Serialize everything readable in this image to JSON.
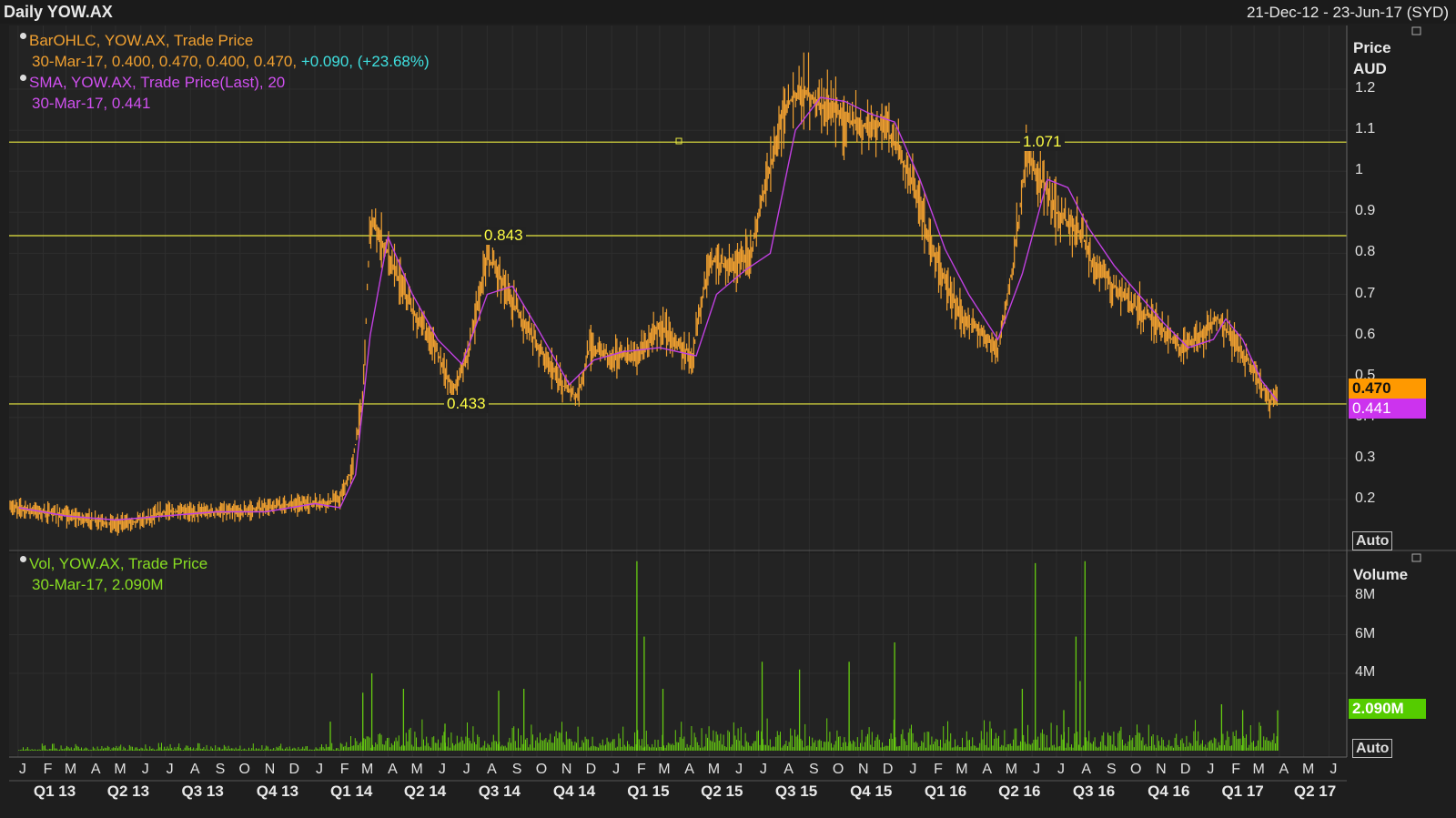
{
  "header": {
    "title": "Daily YOW.AX",
    "range": "21-Dec-12 - 23-Jun-17 (SYD)"
  },
  "price_legend": {
    "ohlc_title": "BarOHLC, YOW.AX, Trade Price",
    "ohlc_values": "30-Mar-17, 0.400, 0.470, 0.400, 0.470,",
    "ohlc_change": "+0.090, (+23.68%)",
    "sma_title": "SMA, YOW.AX, Trade Price(Last),  20",
    "sma_values": "30-Mar-17, 0.441"
  },
  "volume_legend": {
    "title": "Vol, YOW.AX, Trade Price",
    "values": "30-Mar-17, 2.090M"
  },
  "price_axis": {
    "title_1": "Price",
    "title_2": "AUD",
    "ticks": [
      "1.2",
      "1.1",
      "1",
      "0.9",
      "0.8",
      "0.7",
      "0.6",
      "0.5",
      "0.4",
      "0.3",
      "0.2"
    ],
    "auto_label": "Auto",
    "last_price_tag": "0.470",
    "sma_tag": "0.441"
  },
  "volume_axis": {
    "title": "Volume",
    "ticks": [
      "8M",
      "6M",
      "4M"
    ],
    "auto_label": "Auto",
    "last_volume_tag": "2.090M"
  },
  "hlines": [
    "1.071",
    "0.843",
    "0.433"
  ],
  "month_labels": [
    "J",
    "F",
    "M",
    "A",
    "M",
    "J",
    "J",
    "A",
    "S",
    "O",
    "N",
    "D",
    "J",
    "F",
    "M",
    "A",
    "M",
    "J",
    "J",
    "A",
    "S",
    "O",
    "N",
    "D",
    "J",
    "F",
    "M",
    "A",
    "M",
    "J",
    "J",
    "A",
    "S",
    "O",
    "N",
    "D",
    "J",
    "F",
    "M",
    "A",
    "M",
    "J",
    "J",
    "A",
    "S",
    "O",
    "N",
    "D",
    "J",
    "F",
    "M",
    "A",
    "M",
    "J"
  ],
  "quarter_labels": [
    "Q1 13",
    "Q2 13",
    "Q3 13",
    "Q4 13",
    "Q1 14",
    "Q2 14",
    "Q3 14",
    "Q4 14",
    "Q1 15",
    "Q2 15",
    "Q3 15",
    "Q4 15",
    "Q1 16",
    "Q2 16",
    "Q3 16",
    "Q4 16",
    "Q1 17",
    "Q2 17"
  ],
  "colors": {
    "ohlc": "#f0a030",
    "sma": "#c040e0",
    "volume": "#66cc11",
    "hline": "#e8e840",
    "tag_price": "#ff9900",
    "tag_sma": "#cc33ee",
    "tag_volume": "#55cc00",
    "change": "#3fe0e0"
  },
  "chart_data": [
    {
      "type": "line",
      "title": "Daily YOW.AX",
      "ylabel": "Price AUD",
      "series": [
        {
          "name": "BarOHLC, YOW.AX, Trade Price",
          "x": [
            "2013-01-02",
            "2013-02-01",
            "2013-03-01",
            "2013-04-01",
            "2013-05-01",
            "2013-06-01",
            "2013-07-01",
            "2013-08-01",
            "2013-09-01",
            "2013-10-01",
            "2013-11-01",
            "2013-12-01",
            "2014-01-01",
            "2014-02-01",
            "2014-02-15",
            "2014-03-01",
            "2014-03-10",
            "2014-04-01",
            "2014-05-01",
            "2014-06-01",
            "2014-06-20",
            "2014-07-10",
            "2014-08-01",
            "2014-08-10",
            "2014-09-01",
            "2014-10-01",
            "2014-11-01",
            "2014-11-20",
            "2014-12-05",
            "2015-01-01",
            "2015-02-01",
            "2015-03-01",
            "2015-03-20",
            "2015-04-10",
            "2015-05-01",
            "2015-06-01",
            "2015-06-20",
            "2015-07-10",
            "2015-08-01",
            "2015-08-20",
            "2015-09-10",
            "2015-10-01",
            "2015-11-01",
            "2015-12-01",
            "2015-12-20",
            "2016-01-10",
            "2016-02-01",
            "2016-03-01",
            "2016-04-01",
            "2016-04-20",
            "2016-05-10",
            "2016-05-25",
            "2016-06-10",
            "2016-07-01",
            "2016-08-01",
            "2016-08-15",
            "2016-09-01",
            "2016-10-01",
            "2016-11-01",
            "2016-12-01",
            "2017-01-01",
            "2017-01-15",
            "2017-02-01",
            "2017-02-15",
            "2017-03-01",
            "2017-03-20",
            "2017-03-30"
          ],
          "y": [
            0.18,
            0.17,
            0.16,
            0.15,
            0.14,
            0.15,
            0.17,
            0.17,
            0.17,
            0.17,
            0.18,
            0.19,
            0.19,
            0.2,
            0.27,
            0.45,
            0.88,
            0.8,
            0.66,
            0.56,
            0.46,
            0.57,
            0.79,
            0.77,
            0.68,
            0.58,
            0.48,
            0.45,
            0.57,
            0.55,
            0.55,
            0.62,
            0.59,
            0.55,
            0.78,
            0.77,
            0.79,
            0.97,
            1.15,
            1.2,
            1.17,
            1.15,
            1.11,
            1.12,
            1.05,
            0.95,
            0.8,
            0.66,
            0.6,
            0.56,
            0.79,
            1.04,
            0.99,
            0.9,
            0.85,
            0.77,
            0.74,
            0.68,
            0.63,
            0.57,
            0.61,
            0.64,
            0.6,
            0.56,
            0.51,
            0.44,
            0.47
          ]
        },
        {
          "name": "SMA, YOW.AX, Trade Price(Last), 20",
          "x": [
            "2013-01-02",
            "2013-03-01",
            "2013-05-01",
            "2013-07-01",
            "2013-09-01",
            "2013-11-01",
            "2014-01-01",
            "2014-02-01",
            "2014-02-20",
            "2014-03-10",
            "2014-04-01",
            "2014-05-01",
            "2014-06-01",
            "2014-07-01",
            "2014-08-01",
            "2014-09-01",
            "2014-10-01",
            "2014-11-10",
            "2014-12-10",
            "2015-01-15",
            "2015-03-01",
            "2015-04-15",
            "2015-05-10",
            "2015-06-15",
            "2015-07-15",
            "2015-08-15",
            "2015-09-15",
            "2015-10-15",
            "2015-11-15",
            "2015-12-15",
            "2016-01-15",
            "2016-02-15",
            "2016-03-15",
            "2016-04-20",
            "2016-05-20",
            "2016-06-20",
            "2016-07-15",
            "2016-08-10",
            "2016-09-10",
            "2016-10-10",
            "2016-11-10",
            "2016-12-10",
            "2017-01-10",
            "2017-01-25",
            "2017-02-15",
            "2017-03-10",
            "2017-03-30"
          ],
          "y": [
            0.18,
            0.16,
            0.15,
            0.16,
            0.17,
            0.17,
            0.19,
            0.18,
            0.26,
            0.6,
            0.84,
            0.7,
            0.59,
            0.53,
            0.7,
            0.72,
            0.62,
            0.48,
            0.54,
            0.56,
            0.57,
            0.55,
            0.7,
            0.76,
            0.8,
            1.1,
            1.18,
            1.17,
            1.14,
            1.12,
            0.98,
            0.81,
            0.7,
            0.59,
            0.75,
            0.98,
            0.96,
            0.86,
            0.77,
            0.7,
            0.63,
            0.57,
            0.59,
            0.64,
            0.59,
            0.49,
            0.44
          ]
        }
      ],
      "hlines": [
        1.071,
        0.843,
        0.433
      ],
      "ylim": [
        0.15,
        1.25
      ],
      "xlim": [
        "2012-12-21",
        "2017-06-23"
      ],
      "grid": true
    },
    {
      "type": "bar",
      "title": "Vol, YOW.AX, Trade Price",
      "ylabel": "Volume",
      "series": [
        {
          "name": "Vol, YOW.AX, Trade Price",
          "x": [
            "2014-01-20",
            "2014-03-01",
            "2014-03-12",
            "2014-04-20",
            "2014-06-10",
            "2014-08-15",
            "2014-09-15",
            "2015-02-01",
            "2015-02-10",
            "2015-03-05",
            "2015-07-05",
            "2015-08-20",
            "2015-10-20",
            "2015-12-15",
            "2016-05-20",
            "2016-06-05",
            "2016-07-10",
            "2016-07-25",
            "2016-07-30",
            "2016-08-05",
            "2017-01-20",
            "2017-02-15",
            "2017-03-30"
          ],
          "y": [
            1.5,
            3.0,
            4.0,
            3.2,
            1.4,
            3.1,
            3.2,
            9.8,
            5.9,
            3.2,
            4.6,
            4.2,
            4.6,
            5.6,
            3.2,
            9.7,
            2.1,
            5.9,
            3.6,
            9.8,
            2.4,
            2.1,
            2.09
          ]
        }
      ],
      "ylim": [
        0,
        10
      ],
      "yunit": "M"
    }
  ]
}
